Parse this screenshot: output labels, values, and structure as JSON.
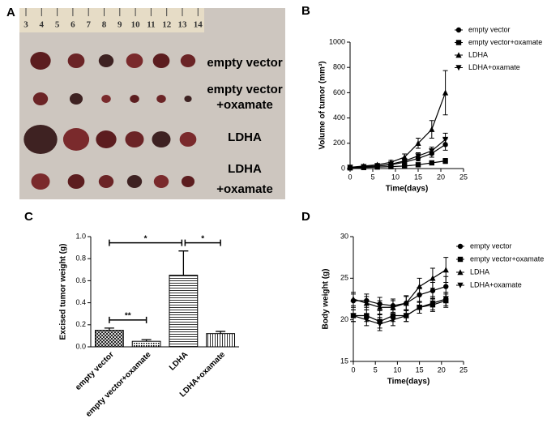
{
  "photo": {
    "panel": "A",
    "ruler": [
      3,
      4,
      5,
      6,
      7,
      8,
      9,
      10,
      11,
      12,
      13,
      14
    ],
    "labels": [
      [
        "empty vector"
      ],
      [
        "empty vector",
        "+oxamate"
      ],
      [
        "LDHA"
      ],
      [
        "LDHA",
        "+oxamate"
      ]
    ]
  },
  "chart_data": [
    {
      "type": "line",
      "panel": "B",
      "xlabel": "Time(days)",
      "ylabel": "Volume of tumor (mm³)",
      "x": [
        0,
        3,
        6,
        9,
        12,
        15,
        18,
        21
      ],
      "xlim": [
        0,
        25
      ],
      "xticks": [
        0,
        5,
        10,
        15,
        20,
        25
      ],
      "ylim": [
        0,
        1000
      ],
      "yticks": [
        0,
        200,
        400,
        600,
        800,
        1000
      ],
      "series": [
        {
          "name": "empty vector",
          "marker": "circle",
          "color": "#000000",
          "values": [
            10,
            15,
            20,
            30,
            50,
            80,
            120,
            190
          ],
          "errors": [
            3,
            4,
            5,
            8,
            12,
            20,
            30,
            45
          ]
        },
        {
          "name": "empty vector+oxamate",
          "marker": "square",
          "color": "#000000",
          "values": [
            5,
            8,
            12,
            15,
            20,
            30,
            45,
            60
          ],
          "errors": [
            2,
            3,
            4,
            5,
            7,
            10,
            12,
            20
          ]
        },
        {
          "name": "LDHA",
          "marker": "triangle-up",
          "color": "#000000",
          "values": [
            10,
            20,
            30,
            50,
            90,
            200,
            310,
            600
          ],
          "errors": [
            4,
            6,
            10,
            15,
            25,
            40,
            70,
            175
          ]
        },
        {
          "name": "LDHA+oxamate",
          "marker": "triangle-down",
          "color": "#000000",
          "values": [
            10,
            15,
            20,
            35,
            60,
            100,
            140,
            230
          ],
          "errors": [
            3,
            4,
            6,
            10,
            15,
            25,
            30,
            50
          ]
        }
      ]
    },
    {
      "type": "bar",
      "panel": "C",
      "ylabel": "Excised tumor weight (g)",
      "categories": [
        "empty vector",
        "empty vector+oxamate",
        "LDHA",
        "LDHA+oxamate"
      ],
      "values": [
        0.15,
        0.05,
        0.65,
        0.12
      ],
      "errors": [
        0.02,
        0.015,
        0.22,
        0.02
      ],
      "color": "#000000",
      "ylim": [
        0,
        1
      ],
      "yticks": [
        {
          "value": 0,
          "label": "0.0"
        },
        0.2,
        0.4,
        0.6,
        0.8,
        {
          "value": 1,
          "label": "1.0"
        }
      ],
      "annotations": [
        {
          "between": [
            0,
            1
          ],
          "label": "**"
        },
        {
          "between": [
            0,
            2
          ],
          "label": "*"
        },
        {
          "between": [
            2,
            3
          ],
          "label": "*"
        }
      ]
    },
    {
      "type": "line",
      "panel": "D",
      "xlabel": "Time(days)",
      "ylabel": "Body weight (g)",
      "x": [
        0,
        3,
        6,
        9,
        12,
        15,
        18,
        21
      ],
      "xlim": [
        0,
        25
      ],
      "xticks": [
        0,
        5,
        10,
        15,
        20,
        25
      ],
      "ylim": [
        15,
        30
      ],
      "yticks": [
        15,
        20,
        25,
        30
      ],
      "series": [
        {
          "name": "empty vector",
          "marker": "circle",
          "color": "#000000",
          "values": [
            22.3,
            22.3,
            21.9,
            21.7,
            22,
            23,
            23.5,
            24
          ],
          "errors": [
            0.8,
            0.8,
            0.8,
            0.8,
            0.8,
            0.9,
            1,
            1.2
          ]
        },
        {
          "name": "empty vector+oxamate",
          "marker": "square",
          "color": "#000000",
          "values": [
            20.5,
            20.5,
            19.8,
            20.5,
            20.5,
            21.5,
            21.8,
            22.3
          ],
          "errors": [
            0.7,
            0.7,
            0.8,
            0.7,
            0.7,
            0.7,
            0.8,
            0.8
          ]
        },
        {
          "name": "LDHA",
          "marker": "triangle-up",
          "color": "#000000",
          "values": [
            22.5,
            22,
            21.5,
            21.5,
            22,
            24,
            25,
            26
          ],
          "errors": [
            0.8,
            0.8,
            0.8,
            0.8,
            0.9,
            1,
            1.2,
            1.5
          ]
        },
        {
          "name": "LDHA+oxamate",
          "marker": "triangle-down",
          "color": "#000000",
          "values": [
            20.5,
            20,
            19.5,
            20,
            20.5,
            21.5,
            22,
            22.5
          ],
          "errors": [
            0.7,
            0.7,
            0.8,
            0.7,
            0.7,
            0.7,
            0.8,
            0.8
          ]
        }
      ]
    }
  ]
}
